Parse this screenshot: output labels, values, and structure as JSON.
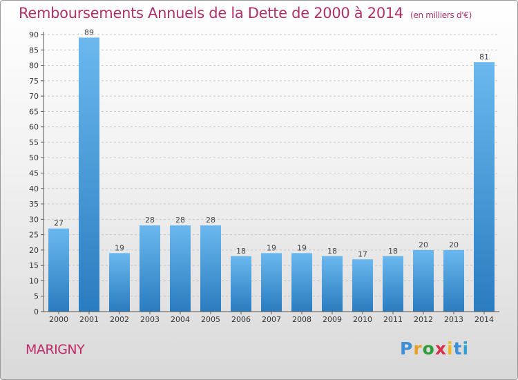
{
  "header": {
    "title": "Remboursements Annuels de la Dette de 2000 à 2014",
    "unit": "(en milliers d'€)"
  },
  "footer": {
    "town": "MARIGNY",
    "logo_letters": [
      "P",
      "r",
      "o",
      "x",
      "i",
      "t",
      "i"
    ],
    "logo_colors": [
      "#3a8fd8",
      "#e8a020",
      "#2f9e3a",
      "#d8304a",
      "#f0b820",
      "#3a8fd8",
      "#2fa0d0"
    ]
  },
  "chart_data": {
    "type": "bar",
    "categories": [
      "2000",
      "2001",
      "2002",
      "2003",
      "2004",
      "2005",
      "2006",
      "2007",
      "2008",
      "2009",
      "2010",
      "2011",
      "2012",
      "2013",
      "2014"
    ],
    "values": [
      27,
      89,
      19,
      28,
      28,
      28,
      18,
      19,
      19,
      18,
      17,
      18,
      20,
      20,
      81
    ],
    "ylim": [
      0,
      90
    ],
    "yticks": [
      0,
      5,
      10,
      15,
      20,
      25,
      30,
      35,
      40,
      45,
      50,
      55,
      60,
      65,
      70,
      75,
      80,
      85,
      90
    ],
    "grid": true,
    "bar_color_top": "#6ab8ee",
    "bar_color_bottom": "#2a7cc0",
    "axis_color": "#555555"
  }
}
